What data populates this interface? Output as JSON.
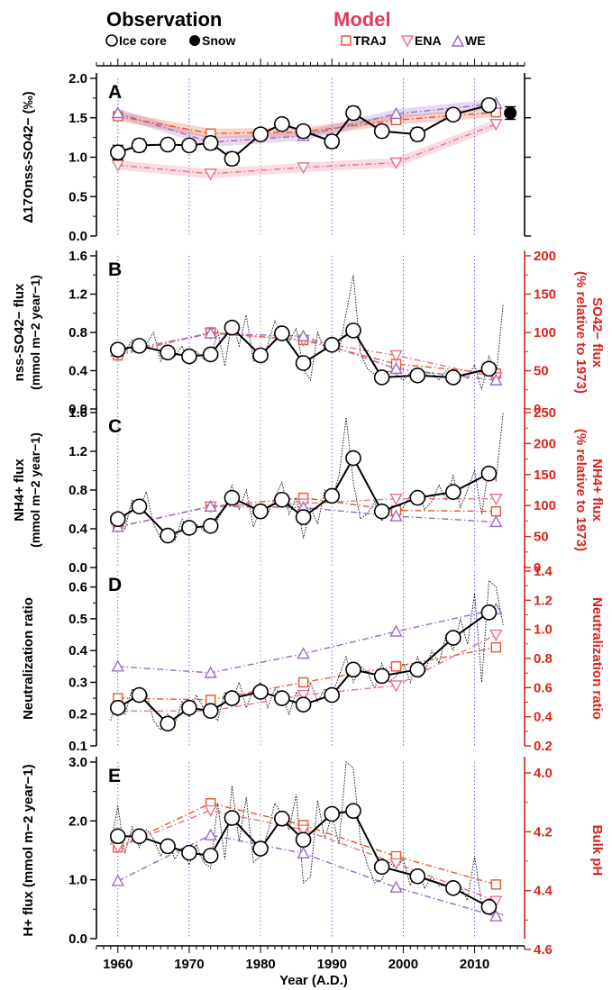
{
  "legend": {
    "observation_title": "Observation",
    "model_title": "Model",
    "ice_core": "Ice core",
    "snow": "Snow",
    "traj": "TRAJ",
    "ena": "ENA",
    "we": "WE"
  },
  "xaxis": {
    "label": "Year (A.D.)",
    "ticks": [
      1960,
      1970,
      1980,
      1990,
      2000,
      2010
    ]
  },
  "colors": {
    "obs": "#000000",
    "traj": "#e8542f",
    "ena": "#e8728a",
    "we": "#9b6bc0",
    "red_axis": "#d9241c",
    "model_title": "#e23a5a",
    "grid": "#5a5ae0"
  },
  "chart_data": [
    {
      "type": "line",
      "panel": "A",
      "ylabel": "Δ17Onss-SO42− (‰)",
      "ylim": [
        0,
        2
      ],
      "yticks": [
        "0.0",
        "0.5",
        "1.0",
        "1.5",
        "2.0"
      ],
      "ice_core": {
        "x": [
          1960,
          1963,
          1967,
          1970,
          1973,
          1976,
          1980,
          1983,
          1986,
          1990,
          1993,
          1997,
          2002,
          2007,
          2012
        ],
        "y": [
          1.06,
          1.15,
          1.16,
          1.15,
          1.18,
          0.98,
          1.29,
          1.42,
          1.33,
          1.2,
          1.56,
          1.33,
          1.29,
          1.54,
          1.66
        ],
        "err": [
          0.09,
          0.08,
          0.07,
          0.07,
          0.08,
          0.08,
          0.07,
          0.07,
          0.07,
          0.08,
          0.08,
          0.07,
          0.08,
          0.07,
          0.07
        ]
      },
      "snow": {
        "x": [
          2015
        ],
        "y": [
          1.56
        ],
        "err": [
          0.08
        ]
      },
      "traj": {
        "x": [
          1960,
          1973,
          1986,
          1999,
          2013
        ],
        "y": [
          1.52,
          1.3,
          1.32,
          1.47,
          1.57
        ]
      },
      "ena": {
        "x": [
          1960,
          1973,
          1986,
          1999,
          2013
        ],
        "y": [
          0.9,
          0.79,
          0.87,
          0.93,
          1.42
        ]
      },
      "we": {
        "x": [
          1960,
          1973,
          1986,
          1999,
          2013
        ],
        "y": [
          1.56,
          1.19,
          1.27,
          1.55,
          1.68
        ]
      }
    },
    {
      "type": "line",
      "panel": "B",
      "ylabel": "nss-SO42− flux",
      "ylabel_units": "(mmol m−2 year−1)",
      "ylim": [
        0,
        1.6
      ],
      "yticks": [
        "0.0",
        "0.4",
        "0.8",
        "1.2",
        "1.6"
      ],
      "right_ylabel": "SO42− flux",
      "right_ylabel_units": "(% relative to 1973)",
      "right_ylim": [
        0,
        200
      ],
      "right_yticks": [
        "0",
        "50",
        "100",
        "150",
        "200"
      ],
      "ice_core": {
        "x": [
          1960,
          1963,
          1967,
          1970,
          1973,
          1976,
          1980,
          1983,
          1986,
          1990,
          1993,
          1997,
          2002,
          2007,
          2012
        ],
        "y": [
          0.62,
          0.66,
          0.59,
          0.55,
          0.57,
          0.85,
          0.56,
          0.79,
          0.48,
          0.67,
          0.82,
          0.33,
          0.35,
          0.33,
          0.42
        ]
      },
      "annual": {
        "x": [
          1959,
          1960,
          1961,
          1962,
          1963,
          1964,
          1965,
          1966,
          1967,
          1968,
          1969,
          1970,
          1971,
          1972,
          1973,
          1974,
          1975,
          1976,
          1977,
          1978,
          1979,
          1980,
          1981,
          1982,
          1983,
          1984,
          1985,
          1986,
          1987,
          1988,
          1989,
          1990,
          1991,
          1992,
          1993,
          1994,
          1995,
          1996,
          1997,
          1998,
          1999,
          2000,
          2001,
          2002,
          2003,
          2004,
          2005,
          2006,
          2007,
          2008,
          2009,
          2010,
          2011,
          2012,
          2013,
          2014
        ],
        "y": [
          0.55,
          0.7,
          0.6,
          0.72,
          0.58,
          0.68,
          0.8,
          0.5,
          0.62,
          0.55,
          0.66,
          0.47,
          0.6,
          0.52,
          0.5,
          0.82,
          0.45,
          0.92,
          0.66,
          0.98,
          0.5,
          0.52,
          0.66,
          0.92,
          0.78,
          0.7,
          0.84,
          0.42,
          0.3,
          0.8,
          0.62,
          0.75,
          0.6,
          1.0,
          1.4,
          0.58,
          0.42,
          0.36,
          0.32,
          0.4,
          0.36,
          0.3,
          0.38,
          0.28,
          0.36,
          0.38,
          0.3,
          0.4,
          0.28,
          0.36,
          0.32,
          0.46,
          0.2,
          0.56,
          0.32,
          1.1
        ]
      },
      "traj": {
        "x": [
          1960,
          1973,
          1986,
          1999,
          2013
        ],
        "y": [
          0.56,
          0.8,
          0.72,
          0.47,
          0.37
        ]
      },
      "ena": {
        "x": [
          1960,
          1973,
          1986,
          1999,
          2013
        ],
        "y": [
          0.58,
          0.79,
          0.72,
          0.56,
          0.33
        ]
      },
      "we": {
        "x": [
          1960,
          1973,
          1986,
          1999,
          2013
        ],
        "y": [
          0.6,
          0.79,
          0.76,
          0.42,
          0.3
        ]
      }
    },
    {
      "type": "line",
      "panel": "C",
      "ylabel": "NH4+ flux",
      "ylabel_units": "(mmol m−2 year−1)",
      "ylim": [
        0,
        1.6
      ],
      "yticks": [
        "0.0",
        "0.4",
        "0.8",
        "1.2",
        "1.6"
      ],
      "right_ylabel": "NH4+ flux",
      "right_ylabel_units": "(% relative to 1973)",
      "right_ylim": [
        0,
        250
      ],
      "right_yticks": [
        "0",
        "50",
        "100",
        "150",
        "200",
        "250"
      ],
      "ice_core": {
        "x": [
          1960,
          1963,
          1967,
          1970,
          1973,
          1976,
          1980,
          1983,
          1986,
          1990,
          1993,
          1997,
          2002,
          2007,
          2012
        ],
        "y": [
          0.5,
          0.63,
          0.33,
          0.41,
          0.43,
          0.72,
          0.58,
          0.7,
          0.52,
          0.74,
          1.13,
          0.58,
          0.72,
          0.78,
          0.97
        ]
      },
      "annual": {
        "x": [
          1959,
          1960,
          1961,
          1962,
          1963,
          1964,
          1965,
          1966,
          1967,
          1968,
          1969,
          1970,
          1971,
          1972,
          1973,
          1974,
          1975,
          1976,
          1977,
          1978,
          1979,
          1980,
          1981,
          1982,
          1983,
          1984,
          1985,
          1986,
          1987,
          1988,
          1989,
          1990,
          1991,
          1992,
          1993,
          1994,
          1995,
          1996,
          1997,
          1998,
          1999,
          2000,
          2001,
          2002,
          2003,
          2004,
          2005,
          2006,
          2007,
          2008,
          2009,
          2010,
          2011,
          2012,
          2013,
          2014
        ],
        "y": [
          0.45,
          0.55,
          0.4,
          0.7,
          0.6,
          0.78,
          0.45,
          0.3,
          0.35,
          0.28,
          0.5,
          0.35,
          0.45,
          0.38,
          0.4,
          0.5,
          0.62,
          0.85,
          0.6,
          0.8,
          0.42,
          0.6,
          0.55,
          0.72,
          0.88,
          0.55,
          0.72,
          0.3,
          0.62,
          0.45,
          0.8,
          0.7,
          0.95,
          1.55,
          0.88,
          0.5,
          0.56,
          0.68,
          0.48,
          0.6,
          0.52,
          0.62,
          0.75,
          0.8,
          0.6,
          0.68,
          0.85,
          0.7,
          0.95,
          0.62,
          0.8,
          1.0,
          0.55,
          1.05,
          0.9,
          1.62
        ]
      },
      "traj": {
        "x": [
          1960,
          1973,
          1986,
          1999,
          2013
        ],
        "y": [
          0.42,
          0.63,
          0.72,
          0.59,
          0.58
        ]
      },
      "ena": {
        "x": [
          1960,
          1973,
          1986,
          1999,
          2013
        ],
        "y": [
          0.42,
          0.63,
          0.66,
          0.71,
          0.71
        ]
      },
      "we": {
        "x": [
          1960,
          1973,
          1986,
          1999,
          2013
        ],
        "y": [
          0.42,
          0.63,
          0.62,
          0.53,
          0.47
        ]
      }
    },
    {
      "type": "line",
      "panel": "D",
      "ylabel": "Neutralization ratio",
      "ylim": [
        0.1,
        0.65
      ],
      "yticks": [
        "0.1",
        "0.2",
        "0.3",
        "0.4",
        "0.5",
        "0.6"
      ],
      "right_ylabel": "Neutralization ratio",
      "right_ylim": [
        0.2,
        1.4
      ],
      "right_yticks": [
        "0.2",
        "0.4",
        "0.6",
        "0.8",
        "1.0",
        "1.2",
        "1.4"
      ],
      "ice_core": {
        "x": [
          1960,
          1963,
          1967,
          1970,
          1973,
          1976,
          1980,
          1983,
          1986,
          1990,
          1993,
          1997,
          2002,
          2007,
          2012
        ],
        "y": [
          0.22,
          0.26,
          0.17,
          0.22,
          0.21,
          0.25,
          0.27,
          0.25,
          0.23,
          0.26,
          0.34,
          0.32,
          0.34,
          0.44,
          0.52
        ]
      },
      "annual": {
        "x": [
          1959,
          1960,
          1961,
          1962,
          1963,
          1964,
          1965,
          1966,
          1967,
          1968,
          1969,
          1970,
          1971,
          1972,
          1973,
          1974,
          1975,
          1976,
          1977,
          1978,
          1979,
          1980,
          1981,
          1982,
          1983,
          1984,
          1985,
          1986,
          1987,
          1988,
          1989,
          1990,
          1991,
          1992,
          1993,
          1994,
          1995,
          1996,
          1997,
          1998,
          1999,
          2000,
          2001,
          2002,
          2003,
          2004,
          2005,
          2006,
          2007,
          2008,
          2009,
          2010,
          2011,
          2012,
          2013,
          2014
        ],
        "y": [
          0.18,
          0.25,
          0.2,
          0.28,
          0.24,
          0.27,
          0.18,
          0.15,
          0.2,
          0.17,
          0.24,
          0.19,
          0.26,
          0.22,
          0.2,
          0.18,
          0.27,
          0.24,
          0.3,
          0.22,
          0.28,
          0.3,
          0.22,
          0.28,
          0.26,
          0.2,
          0.27,
          0.22,
          0.3,
          0.24,
          0.28,
          0.26,
          0.32,
          0.38,
          0.3,
          0.35,
          0.33,
          0.28,
          0.36,
          0.3,
          0.32,
          0.36,
          0.3,
          0.38,
          0.33,
          0.4,
          0.36,
          0.45,
          0.4,
          0.5,
          0.42,
          0.58,
          0.3,
          0.62,
          0.6,
          0.48
        ]
      },
      "traj": {
        "x": [
          1960,
          1973,
          1986,
          1999,
          2013
        ],
        "y": [
          0.25,
          0.245,
          0.3,
          0.35,
          0.41
        ]
      },
      "ena": {
        "x": [
          1960,
          1973,
          1986,
          1999,
          2013
        ],
        "y": [
          0.21,
          0.21,
          0.26,
          0.29,
          0.45
        ]
      },
      "we": {
        "x": [
          1960,
          1973,
          1986,
          1999,
          2013
        ],
        "y": [
          0.35,
          0.33,
          0.39,
          0.46,
          0.53
        ]
      }
    },
    {
      "type": "line",
      "panel": "E",
      "ylabel": "H+ flux (mmol m−2 year−1)",
      "ylim": [
        0,
        3
      ],
      "yticks": [
        "0.0",
        "1.0",
        "2.0",
        "3.0"
      ],
      "right_ylabel": "Bulk pH",
      "right_ylim": [
        4.0,
        4.6
      ],
      "right_yticks": [
        "4.0",
        "4.2",
        "4.4",
        "4.6"
      ],
      "ice_core": {
        "x": [
          1960,
          1963,
          1967,
          1970,
          1973,
          1976,
          1980,
          1983,
          1986,
          1990,
          1993,
          1997,
          2002,
          2007,
          2012
        ],
        "y": [
          1.74,
          1.74,
          1.57,
          1.46,
          1.41,
          2.05,
          1.53,
          2.04,
          1.68,
          2.12,
          2.17,
          1.22,
          1.06,
          0.86,
          0.54
        ]
      },
      "annual": {
        "x": [
          1959,
          1960,
          1961,
          1962,
          1963,
          1964,
          1965,
          1966,
          1967,
          1968,
          1969,
          1970,
          1971,
          1972,
          1973,
          1974,
          1975,
          1976,
          1977,
          1978,
          1979,
          1980,
          1981,
          1982,
          1983,
          1984,
          1985,
          1986,
          1987,
          1988,
          1989,
          1990,
          1991,
          1992,
          1993,
          1994,
          1995,
          1996,
          1997,
          1998,
          1999,
          2000,
          2001,
          2002,
          2003,
          2004,
          2005,
          2006,
          2007,
          2008,
          2009,
          2010,
          2011,
          2012,
          2013,
          2014
        ],
        "y": [
          1.6,
          2.25,
          1.45,
          1.9,
          1.55,
          1.85,
          1.7,
          1.4,
          1.65,
          1.35,
          1.55,
          1.25,
          1.6,
          1.3,
          1.2,
          2.3,
          1.35,
          2.6,
          1.65,
          2.4,
          1.3,
          1.4,
          1.8,
          2.3,
          2.1,
          1.85,
          2.45,
          0.95,
          1.05,
          2.35,
          1.7,
          2.1,
          1.6,
          3.0,
          2.9,
          1.65,
          1.25,
          0.95,
          1.0,
          1.3,
          1.2,
          1.35,
          0.9,
          1.2,
          0.85,
          1.05,
          0.9,
          0.9,
          0.8,
          0.9,
          0.65,
          1.4,
          0.6,
          0.6,
          0.45,
          0.4
        ]
      },
      "traj": {
        "x": [
          1960,
          1973,
          1986,
          1999,
          2013
        ],
        "y": [
          1.55,
          2.3,
          1.93,
          1.4,
          0.92
        ]
      },
      "ena": {
        "x": [
          1960,
          1973,
          1986,
          1999,
          2013
        ],
        "y": [
          1.55,
          2.18,
          1.85,
          1.28,
          0.64
        ]
      },
      "we": {
        "x": [
          1960,
          1973,
          1986,
          1999,
          2013
        ],
        "y": [
          0.98,
          1.76,
          1.45,
          0.87,
          0.38
        ]
      }
    }
  ]
}
